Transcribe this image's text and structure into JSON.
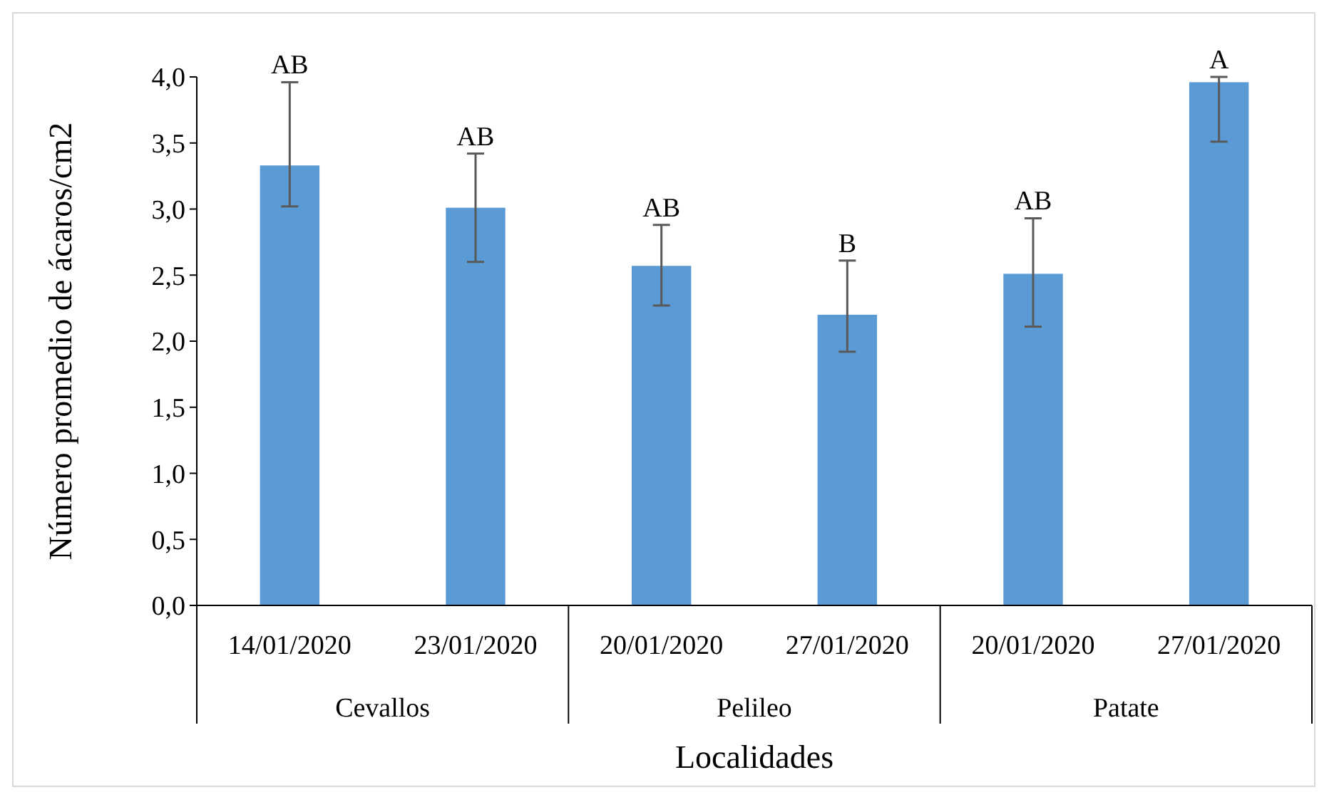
{
  "chart_data": {
    "type": "bar",
    "xlabel": "Localidades",
    "ylabel": "Número promedio de ácaros/cm2",
    "categories": [
      "14/01/2020",
      "23/01/2020",
      "20/01/2020",
      "27/01/2020",
      "20/01/2020",
      "27/01/2020"
    ],
    "values": [
      3.33,
      3.01,
      2.57,
      2.2,
      2.51,
      3.96
    ],
    "errors": [
      [
        3.02,
        3.96
      ],
      [
        2.6,
        3.42
      ],
      [
        2.27,
        2.88
      ],
      [
        1.92,
        2.61
      ],
      [
        2.11,
        2.93
      ],
      [
        3.51,
        4.0
      ]
    ],
    "value_labels": [
      "AB",
      "AB",
      "AB",
      "B",
      "AB",
      "A"
    ],
    "color": "#5b9bd5",
    "annotations": [
      "Cevallos",
      "Pelileo",
      "Patate"
    ],
    "ylim": [
      0,
      4
    ],
    "yticks": [
      {
        "value": 0,
        "label": "0,0"
      },
      {
        "value": 0.5,
        "label": "0,5"
      },
      {
        "value": 1,
        "label": "1,0"
      },
      {
        "value": 1.5,
        "label": "1,5"
      },
      {
        "value": 2,
        "label": "2,0"
      },
      {
        "value": 2.5,
        "label": "2,5"
      },
      {
        "value": 3,
        "label": "3,0"
      },
      {
        "value": 3.5,
        "label": "3,5"
      },
      {
        "value": 4,
        "label": "4,0"
      }
    ],
    "grid": false
  }
}
